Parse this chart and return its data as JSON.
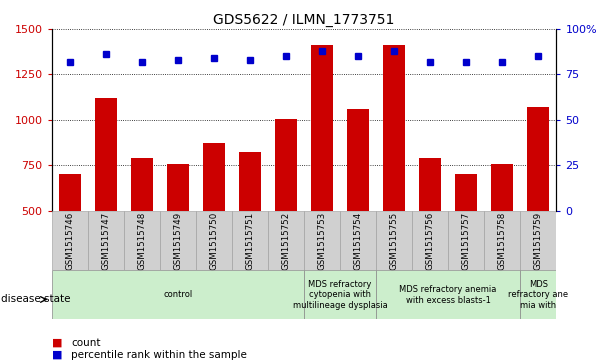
{
  "title": "GDS5622 / ILMN_1773751",
  "samples": [
    "GSM1515746",
    "GSM1515747",
    "GSM1515748",
    "GSM1515749",
    "GSM1515750",
    "GSM1515751",
    "GSM1515752",
    "GSM1515753",
    "GSM1515754",
    "GSM1515755",
    "GSM1515756",
    "GSM1515757",
    "GSM1515758",
    "GSM1515759"
  ],
  "counts": [
    700,
    1120,
    790,
    755,
    870,
    825,
    1005,
    1410,
    1060,
    1410,
    790,
    700,
    755,
    1070
  ],
  "percentile_ranks": [
    82,
    86,
    82,
    83,
    84,
    83,
    85,
    88,
    85,
    88,
    82,
    82,
    82,
    85
  ],
  "bar_color": "#cc0000",
  "dot_color": "#0000cc",
  "ylim_left": [
    500,
    1500
  ],
  "ylim_right": [
    0,
    100
  ],
  "yticks_left": [
    500,
    750,
    1000,
    1250,
    1500
  ],
  "yticks_right": [
    0,
    25,
    50,
    75,
    100
  ],
  "disease_groups": [
    {
      "label": "control",
      "start": 0,
      "end": 7,
      "color": "#cceecc"
    },
    {
      "label": "MDS refractory\ncytopenia with\nmultilineage dysplasia",
      "start": 7,
      "end": 9,
      "color": "#cceecc"
    },
    {
      "label": "MDS refractory anemia\nwith excess blasts-1",
      "start": 9,
      "end": 13,
      "color": "#cceecc"
    },
    {
      "label": "MDS\nrefractory ane\nmia with",
      "start": 13,
      "end": 14,
      "color": "#cceecc"
    }
  ],
  "disease_label": "disease state",
  "tick_bg_color": "#d0d0d0",
  "legend_count_color": "#cc0000",
  "legend_dot_color": "#0000cc"
}
